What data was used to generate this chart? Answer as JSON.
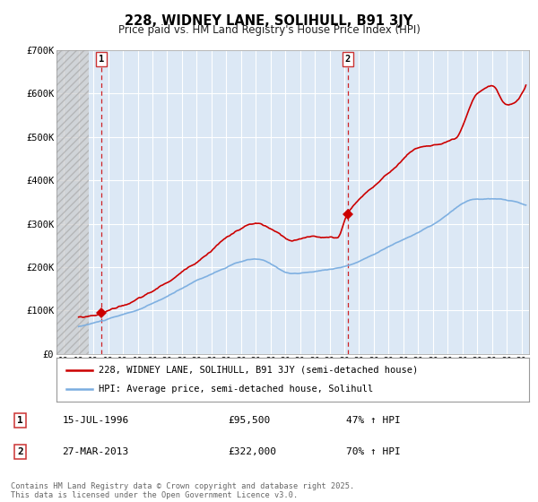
{
  "title": "228, WIDNEY LANE, SOLIHULL, B91 3JY",
  "subtitle": "Price paid vs. HM Land Registry's House Price Index (HPI)",
  "legend_line1": "228, WIDNEY LANE, SOLIHULL, B91 3JY (semi-detached house)",
  "legend_line2": "HPI: Average price, semi-detached house, Solihull",
  "footer": "Contains HM Land Registry data © Crown copyright and database right 2025.\nThis data is licensed under the Open Government Licence v3.0.",
  "transaction1_label": "1",
  "transaction1_date": "15-JUL-1996",
  "transaction1_price": "£95,500",
  "transaction1_hpi": "47% ↑ HPI",
  "transaction1_x": 1996.54,
  "transaction1_y": 95500,
  "transaction2_label": "2",
  "transaction2_date": "27-MAR-2013",
  "transaction2_price": "£322,000",
  "transaction2_hpi": "70% ↑ HPI",
  "transaction2_x": 2013.23,
  "transaction2_y": 322000,
  "xlim": [
    1993.5,
    2025.5
  ],
  "ylim": [
    0,
    700000
  ],
  "yticks": [
    0,
    100000,
    200000,
    300000,
    400000,
    500000,
    600000,
    700000
  ],
  "ytick_labels": [
    "£0",
    "£100K",
    "£200K",
    "£300K",
    "£400K",
    "£500K",
    "£600K",
    "£700K"
  ],
  "red_color": "#cc0000",
  "blue_color": "#7aade0",
  "bg_color": "#dce8f5",
  "grid_color": "#ffffff",
  "hatch_end_x": 1995.7,
  "xtick_years": [
    1994,
    1995,
    1996,
    1997,
    1998,
    1999,
    2000,
    2001,
    2002,
    2003,
    2004,
    2005,
    2006,
    2007,
    2008,
    2009,
    2010,
    2011,
    2012,
    2013,
    2014,
    2015,
    2016,
    2017,
    2018,
    2019,
    2020,
    2021,
    2022,
    2023,
    2024,
    2025
  ]
}
